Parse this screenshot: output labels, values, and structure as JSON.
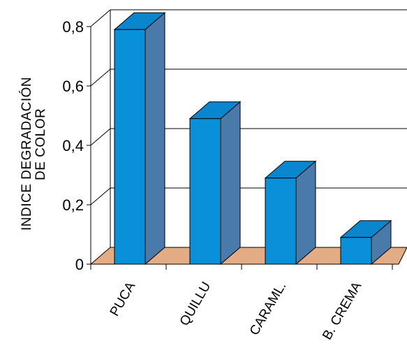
{
  "chart_data": {
    "type": "bar",
    "title": "",
    "xlabel": "",
    "ylabel": [
      "INDICE DEGRADACIÓN",
      "DE COLOR"
    ],
    "categories": [
      "PUCA",
      "QUILLU",
      "CARAML.",
      "B. CREMA"
    ],
    "values": [
      0.79,
      0.49,
      0.29,
      0.09
    ],
    "ylim": [
      0,
      0.8
    ],
    "yticks": [
      0,
      0.2,
      0.4,
      0.6,
      0.8
    ],
    "ytick_labels": [
      "0",
      "0,2",
      "0,4",
      "0,6",
      "0,8"
    ],
    "grid": true,
    "three_d": true,
    "colors": {
      "bar_front": "#0a90d8",
      "bar_top": "#0a86cf",
      "bar_side": "#4a7aaa",
      "floor": "#e3ac84",
      "outline": "#000000"
    }
  }
}
